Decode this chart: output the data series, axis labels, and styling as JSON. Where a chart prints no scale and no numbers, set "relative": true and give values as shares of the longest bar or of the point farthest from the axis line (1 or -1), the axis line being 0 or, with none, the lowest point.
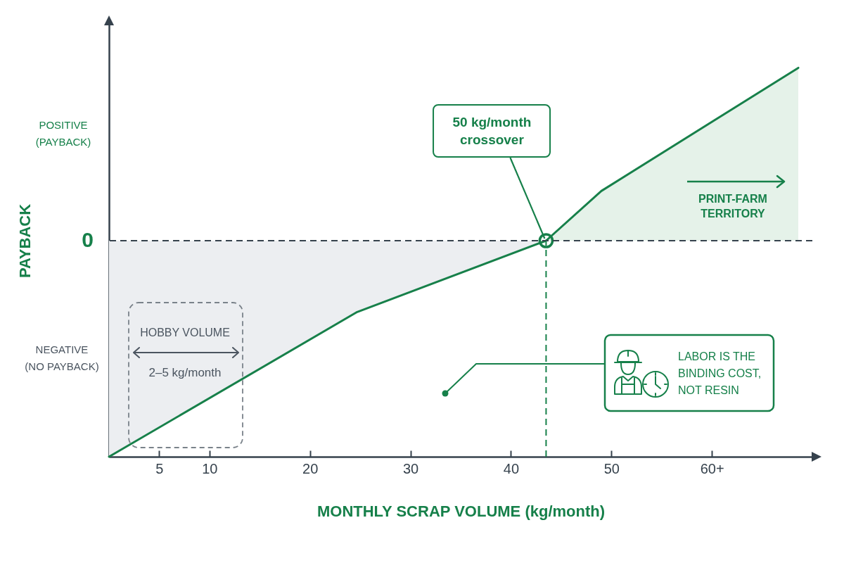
{
  "chart_data": {
    "type": "line",
    "xlabel": "MONTHLY SCRAP VOLUME (kg/month)",
    "ylabel": "PAYBACK",
    "relative": true,
    "xlim": [
      0,
      70
    ],
    "xticks": [
      5,
      10,
      20,
      30,
      40,
      50,
      {
        "value": 60,
        "label": "60+"
      }
    ],
    "series": [
      {
        "type": "area",
        "color": "#eceef1",
        "x": [
          0,
          24.7,
          43.5
        ],
        "values": [
          -1,
          -0.33,
          0
        ]
      },
      {
        "type": "area",
        "color": "#e5f2e9",
        "x": [
          43.5,
          49,
          68.6
        ],
        "values": [
          0,
          0.23,
          0.8
        ]
      },
      {
        "color": "#17804a",
        "x": [
          0,
          24.7,
          43.5,
          49,
          68.6
        ],
        "values": [
          -1,
          -0.33,
          0,
          0.23,
          0.8
        ]
      },
      {
        "type": "scatter",
        "color": "#17804a",
        "x": [
          43.5
        ],
        "values": [
          0
        ],
        "marker": "circle"
      }
    ],
    "ref_lines": [
      {
        "axis": "y",
        "value": 0,
        "label": "0",
        "color": "#36424d",
        "line_style": "dashed"
      },
      {
        "axis": "x",
        "value": 43.5,
        "color": "#17804a",
        "line_style": "dashed"
      }
    ],
    "annotations": [
      "POSITIVE (PAYBACK)",
      "NEGATIVE (NO PAYBACK)",
      {
        "text": "50 kg/month crossover",
        "x": 43.5,
        "y": 0
      },
      "PRINT-FARM TERRITORY",
      "LABOR IS THE BINDING COST, NOT RESIN",
      "HOBBY VOLUME",
      "2–5 kg/month"
    ]
  }
}
